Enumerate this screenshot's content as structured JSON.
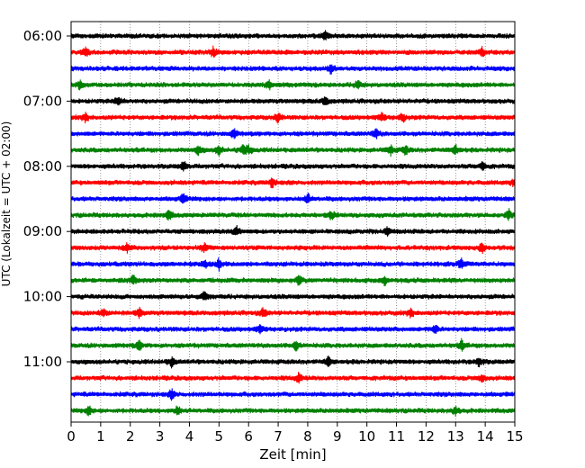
{
  "chart_data": {
    "type": "line",
    "subtype": "helicorder",
    "xlabel": "Zeit  [min]",
    "ylabel": "UTC (Lokalzeit = UTC + 02:00)",
    "xlim": [
      0,
      15
    ],
    "x_ticks": [
      0,
      1,
      2,
      3,
      4,
      5,
      6,
      7,
      8,
      9,
      10,
      11,
      12,
      13,
      14,
      15
    ],
    "y_tick_labels": [
      "06:00",
      "07:00",
      "08:00",
      "09:00",
      "10:00",
      "11:00"
    ],
    "row_interval_minutes": 15,
    "start_time": "06:00",
    "num_traces": 24,
    "trace_colors": [
      "#000000",
      "#ff0000",
      "#0000ff",
      "#008000"
    ],
    "vertical_grid": "dotted",
    "events": [
      [
        8.6
      ],
      [
        0.5,
        4.8,
        13.9
      ],
      [
        8.8
      ],
      [
        0.3,
        6.7,
        9.7
      ],
      [
        1.6,
        8.6
      ],
      [
        0.5,
        7.0,
        10.5,
        11.2
      ],
      [
        5.5,
        10.3
      ],
      [
        4.3,
        5.0,
        5.8,
        6.0,
        10.8,
        11.3,
        13.0
      ],
      [
        3.8,
        13.9
      ],
      [
        6.8,
        15.0
      ],
      [
        3.8,
        8.0
      ],
      [
        3.3,
        8.8,
        14.8
      ],
      [
        5.6,
        10.7
      ],
      [
        1.9,
        4.5,
        13.9
      ],
      [
        4.5,
        5.0,
        13.2
      ],
      [
        2.1,
        7.7,
        10.6
      ],
      [
        4.5
      ],
      [
        1.1,
        2.3,
        6.5,
        11.5
      ],
      [
        6.4,
        12.3
      ],
      [
        2.3,
        7.6,
        13.2
      ],
      [
        3.4,
        8.7,
        13.8
      ],
      [
        7.7,
        13.9
      ],
      [
        3.4
      ],
      [
        0.6,
        3.6,
        13.0
      ]
    ]
  }
}
